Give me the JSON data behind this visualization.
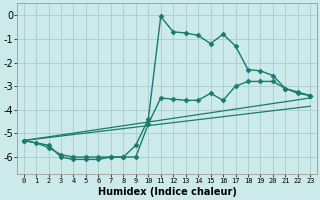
{
  "xlabel": "Humidex (Indice chaleur)",
  "background_color": "#cceaea",
  "grid_color": "#aacccc",
  "line_color": "#1a7a6e",
  "xlim": [
    -0.5,
    23.5
  ],
  "ylim": [
    -6.7,
    0.5
  ],
  "xticks": [
    0,
    1,
    2,
    3,
    4,
    5,
    6,
    7,
    8,
    9,
    10,
    11,
    12,
    13,
    14,
    15,
    16,
    17,
    18,
    19,
    20,
    21,
    22,
    23
  ],
  "yticks": [
    0,
    -1,
    -2,
    -3,
    -4,
    -5,
    -6
  ],
  "series": [
    {
      "x": [
        0,
        2,
        3,
        4,
        5,
        6,
        7,
        8,
        9,
        10,
        11,
        12,
        13,
        14,
        15,
        16,
        17,
        18,
        19,
        20,
        21,
        22,
        23
      ],
      "y": [
        -5.3,
        -5.5,
        -6.0,
        -6.1,
        -6.1,
        -6.1,
        -6.0,
        -6.0,
        -5.5,
        -4.4,
        -0.05,
        -0.7,
        -0.75,
        -0.85,
        -1.2,
        -0.8,
        -1.3,
        -2.3,
        -2.35,
        -2.55,
        -3.1,
        -3.25,
        -3.4
      ],
      "marker": "D",
      "markersize": 2.5,
      "linewidth": 1.0
    },
    {
      "x": [
        0,
        1,
        2,
        3,
        4,
        5,
        6,
        7,
        8,
        9,
        10,
        11,
        12,
        13,
        14,
        15,
        16,
        17,
        18,
        19,
        20,
        21,
        22,
        23
      ],
      "y": [
        -5.3,
        -5.4,
        -5.6,
        -5.9,
        -6.0,
        -6.0,
        -6.0,
        -6.0,
        -6.0,
        -6.0,
        -4.6,
        -3.5,
        -3.55,
        -3.6,
        -3.6,
        -3.3,
        -3.6,
        -3.0,
        -2.8,
        -2.8,
        -2.8,
        -3.1,
        -3.3,
        -3.4
      ],
      "marker": "D",
      "markersize": 2.5,
      "linewidth": 1.0
    },
    {
      "x": [
        0,
        23
      ],
      "y": [
        -5.3,
        -3.5
      ],
      "marker": null,
      "markersize": 0,
      "linewidth": 0.9
    },
    {
      "x": [
        0,
        23
      ],
      "y": [
        -5.3,
        -3.85
      ],
      "marker": null,
      "markersize": 0,
      "linewidth": 0.9
    }
  ]
}
